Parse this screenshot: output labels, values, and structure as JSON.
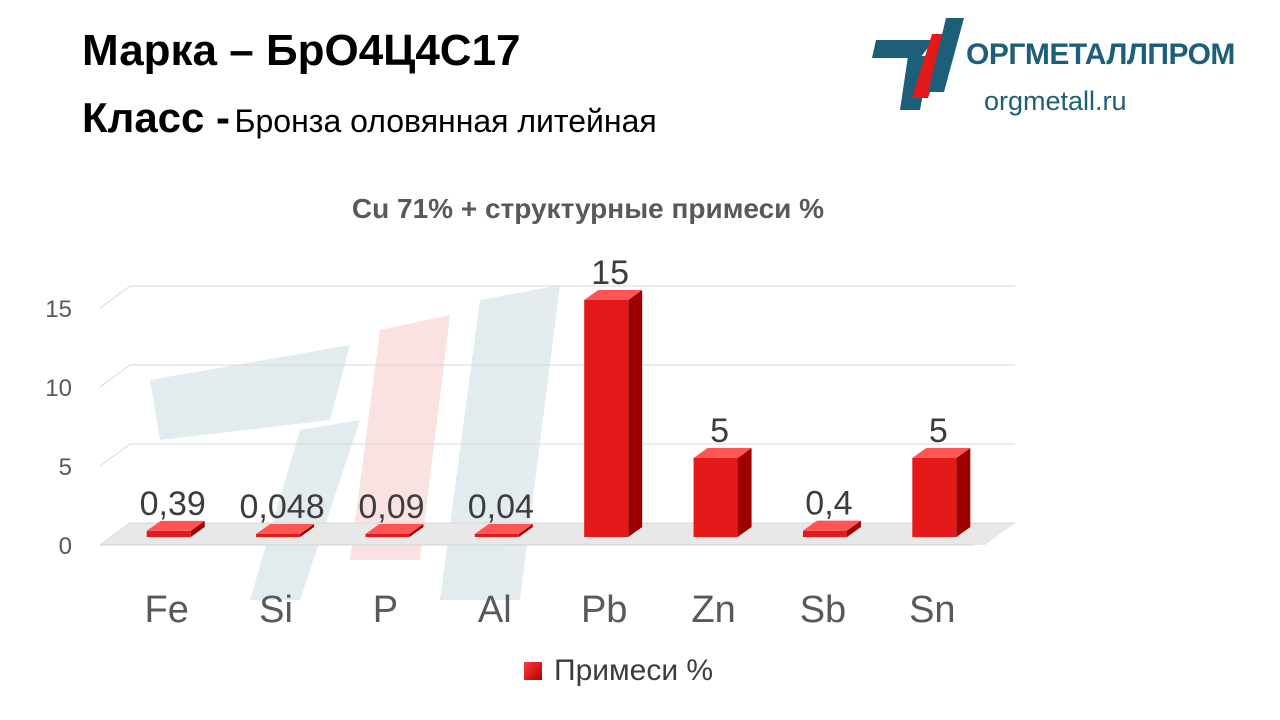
{
  "header": {
    "grade_label": "Марка",
    "grade_sep": "–",
    "grade_value": "БрО4Ц4С17",
    "class_label": "Класс -",
    "class_value": "Бронза оловянная литейная"
  },
  "logo": {
    "name": "ОРГМЕТАЛЛПРОМ",
    "url": "orgmetall.ru",
    "icon": "logo-emblem"
  },
  "chart_data": {
    "type": "bar",
    "title": "Cu 71% + структурные примеси %",
    "categories": [
      "Fe",
      "Si",
      "P",
      "Al",
      "Pb",
      "Zn",
      "Sb",
      "Sn"
    ],
    "series": [
      {
        "name": "Примеси %",
        "values": [
          0.39,
          0.048,
          0.09,
          0.04,
          15,
          5,
          0.4,
          5
        ],
        "labels": [
          "0,39",
          "0,048",
          "0,09",
          "0,04",
          "15",
          "5",
          "0,4",
          "5"
        ]
      }
    ],
    "ylim": [
      0,
      15
    ],
    "yticks": [
      0,
      5,
      10,
      15
    ],
    "grid": true,
    "legend": "bottom",
    "style": "3d",
    "colors": {
      "bar": "#e41a1a",
      "bar_side": "#9e0000",
      "bar_top": "#ff5555"
    }
  }
}
